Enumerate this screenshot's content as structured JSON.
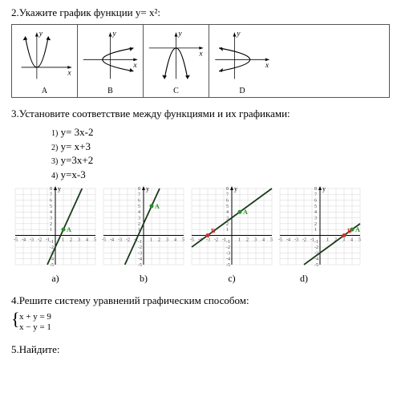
{
  "q2": {
    "text": "2.Укажите график функции y= x²:",
    "options": [
      "A",
      "B",
      "C",
      "D"
    ],
    "axis_y": "y",
    "axis_x": "x",
    "border_color": "#555555",
    "curve_color": "#000000",
    "curve_width": 1.2
  },
  "q3": {
    "text": "3.Установите соответствие между функциями и их графиками:",
    "equations": [
      {
        "n": "1)",
        "eq": "y= 3x-2"
      },
      {
        "n": "2)",
        "eq": "y= x+3"
      },
      {
        "n": "3)",
        "eq": "y=3x+2"
      },
      {
        "n": "4)",
        "eq": "y=x-3"
      }
    ],
    "panel_labels": [
      "a)",
      "b)",
      "c)",
      "d)"
    ],
    "axis_y": "y",
    "axis_x": "x",
    "grid_color": "#cccccc",
    "axis_color": "#000000",
    "line_color": "#1a3a1a",
    "line_width": 1.8,
    "pointA_color": "#2a8a2a",
    "pointB_color": "#cc3333",
    "point_label_A": "A",
    "point_label_B": "B",
    "tick_fontsize": 6,
    "graphs": [
      {
        "slope": 3,
        "intercept": -2,
        "xrange": [
          -5,
          5
        ],
        "yrange": [
          -5,
          8
        ],
        "pA": [
          1,
          1
        ],
        "pB": null
      },
      {
        "slope": 3,
        "intercept": 2,
        "xrange": [
          -5,
          5
        ],
        "yrange": [
          -5,
          8
        ],
        "pA": [
          1,
          5
        ],
        "pB": null
      },
      {
        "slope": 1,
        "intercept": 3,
        "xrange": [
          -5,
          5
        ],
        "yrange": [
          -5,
          8
        ],
        "pA": [
          1,
          4
        ],
        "pB": [
          -3,
          0
        ]
      },
      {
        "slope": 1,
        "intercept": -3,
        "xrange": [
          -5,
          5
        ],
        "yrange": [
          -5,
          8
        ],
        "pA": [
          4,
          1
        ],
        "pB": [
          3,
          0
        ]
      }
    ]
  },
  "q4": {
    "text": "4.Решите систему уравнений графическим способом:",
    "sys": [
      "x + y = 9",
      "x − y = 1"
    ]
  },
  "q5": {
    "text": "5.Найдите:"
  }
}
